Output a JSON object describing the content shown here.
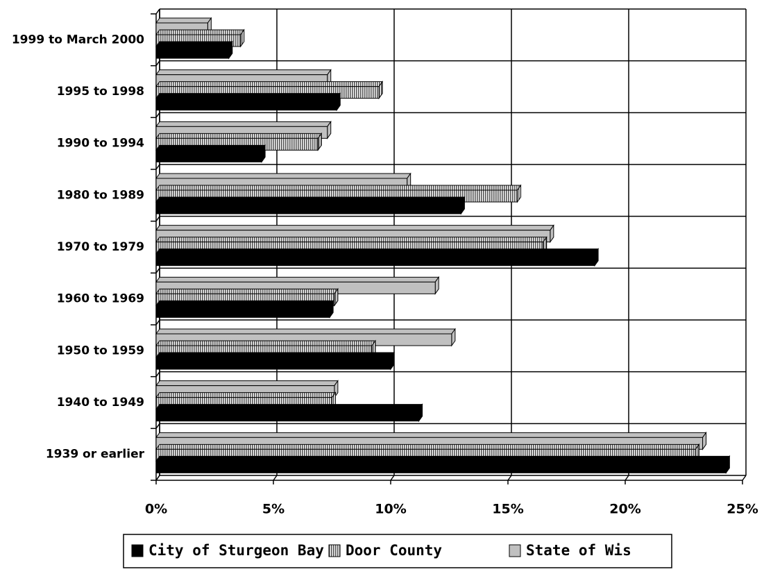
{
  "chart_data": {
    "type": "bar",
    "categories": [
      "1999 to March 2000",
      "1995 to 1998",
      "1990 to 1994",
      "1980 to 1989",
      "1970 to 1979",
      "1960 to 1969",
      "1950 to 1959",
      "1940 to 1949",
      "1939 or earlier"
    ],
    "series": [
      {
        "name": "City of Sturgeon Bay",
        "color": "#000000",
        "values": [
          3.1,
          7.7,
          4.5,
          13.0,
          18.7,
          7.4,
          10.0,
          11.2,
          24.3
        ]
      },
      {
        "name": "Door County",
        "color": "#a0a0a0",
        "values": [
          3.6,
          9.5,
          6.9,
          15.4,
          16.5,
          7.6,
          9.2,
          7.5,
          23.0
        ]
      },
      {
        "name": "State of Wis",
        "color": "#c0c0c0",
        "values": [
          2.2,
          7.3,
          7.3,
          10.7,
          16.8,
          11.9,
          12.6,
          7.6,
          23.3
        ]
      }
    ],
    "xlim": [
      0,
      25
    ],
    "xticks": [
      {
        "value": 0,
        "label": "0%"
      },
      {
        "value": 5,
        "label": "5%"
      },
      {
        "value": 10,
        "label": "10%"
      },
      {
        "value": 15,
        "label": "15%"
      },
      {
        "value": 20,
        "label": "20%"
      },
      {
        "value": 25,
        "label": "25%"
      }
    ],
    "grid": true,
    "legend": "bottom"
  }
}
